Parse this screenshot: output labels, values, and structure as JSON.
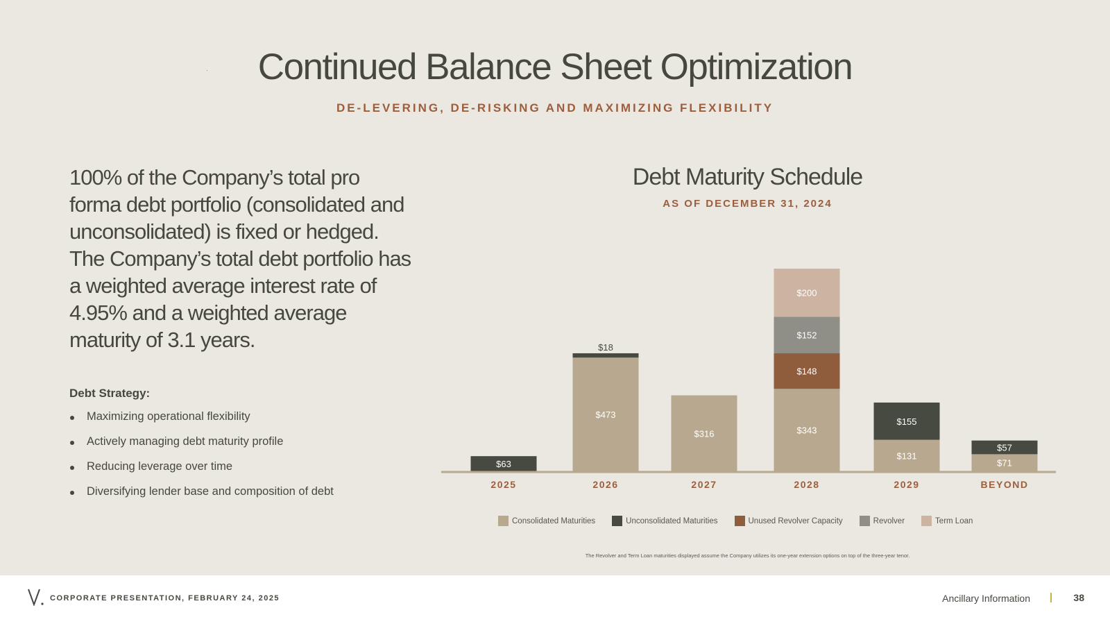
{
  "header": {
    "title": "Continued Balance Sheet Optimization",
    "subtitle": "DE-LEVERING, DE-RISKING AND MAXIMIZING FLEXIBILITY"
  },
  "left": {
    "body": "100% of the Company’s total pro forma debt portfolio (consolidated and unconsolidated) is fixed or hedged. The Company’s total debt portfolio has a weighted average interest rate of 4.95% and a weighted average maturity of 3.1 years.",
    "strategy_heading": "Debt Strategy:",
    "strategy_items": [
      "Maximizing operational flexibility",
      "Actively managing debt maturity profile",
      "Reducing leverage over time",
      "Diversifying lender base and composition of debt"
    ]
  },
  "chart_data": {
    "type": "bar",
    "stacked": true,
    "title": "Debt Maturity Schedule",
    "subtitle": "AS OF DECEMBER 31, 2024",
    "categories": [
      "2025",
      "2026",
      "2027",
      "2028",
      "2029",
      "BEYOND"
    ],
    "series": [
      {
        "name": "Consolidated Maturities",
        "color": "#b9a890",
        "values": [
          0,
          473,
          316,
          343,
          131,
          71
        ]
      },
      {
        "name": "Unconsolidated Maturities",
        "color": "#474a40",
        "values": [
          63,
          18,
          0,
          0,
          155,
          57
        ]
      },
      {
        "name": "Unused Revolver Capacity",
        "color": "#8f5c3c",
        "values": [
          0,
          0,
          0,
          148,
          0,
          0
        ]
      },
      {
        "name": "Revolver",
        "color": "#8f8e87",
        "values": [
          0,
          0,
          0,
          152,
          0,
          0
        ]
      },
      {
        "name": "Term Loan",
        "color": "#ccb3a2",
        "values": [
          0,
          0,
          0,
          200,
          0,
          0
        ]
      }
    ],
    "value_labels": {
      "Consolidated Maturities": [
        "",
        "$473",
        "$316",
        "$343",
        "$131",
        "$71"
      ],
      "Unconsolidated Maturities": [
        "$63",
        "$18",
        "",
        "",
        "$155",
        "$57"
      ],
      "Unused Revolver Capacity": [
        "",
        "",
        "",
        "$148",
        "",
        ""
      ],
      "Revolver": [
        "",
        "",
        "",
        "$152",
        "",
        ""
      ],
      "Term Loan": [
        "",
        "",
        "",
        "$200",
        "",
        ""
      ]
    },
    "legend_position": "bottom",
    "grid": false
  },
  "footnote": "The Revolver and Term Loan maturities displayed assume the Company utilizes its one-year extension options on top of the three-year tenor.",
  "footer": {
    "left_text": "CORPORATE PRESENTATION, FEBRUARY 24, 2025",
    "section": "Ancillary Information",
    "page_number": "38"
  },
  "colors": {
    "background": "#ebe8e1",
    "accent": "#9c5e3d",
    "text": "#46483f"
  }
}
